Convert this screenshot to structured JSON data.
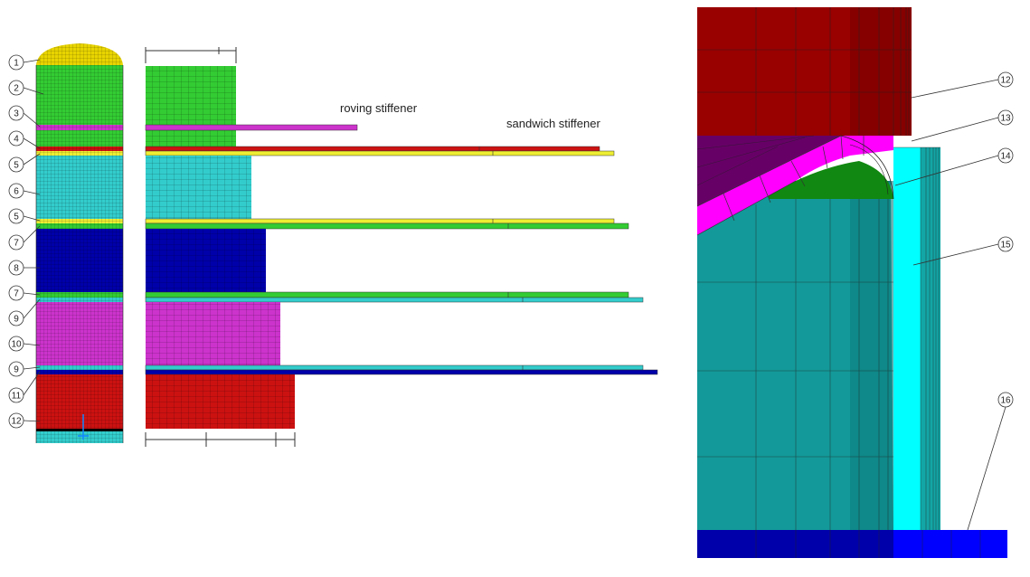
{
  "colors": {
    "green": "#33cc33",
    "magenta": "#cc33cc",
    "red": "#cc1111",
    "yellow": "#eeee33",
    "cyan": "#33cccc",
    "blue": "#0000aa",
    "darkred": "#990000",
    "purple": "#660066",
    "pink": "#ff00ff",
    "darkgreen": "#118811",
    "teal": "#139999",
    "aqua": "#00ffff",
    "mesh": "#333333"
  },
  "labels": {
    "roving": "roving stiffener",
    "sandwich": "sandwich stiffener"
  },
  "left_callouts": [
    "1",
    "2",
    "3",
    "4",
    "5",
    "6",
    "5",
    "7",
    "8",
    "7",
    "9",
    "10",
    "9",
    "11",
    "12"
  ],
  "right_callouts": [
    "12",
    "13",
    "14",
    "15",
    "16"
  ]
}
